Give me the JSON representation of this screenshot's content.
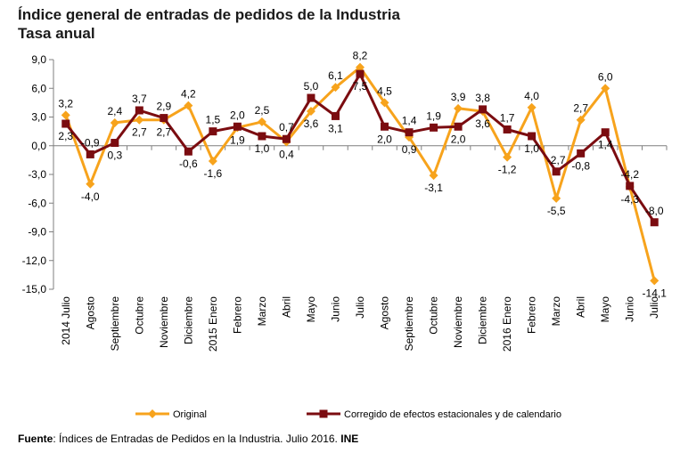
{
  "title_line1": "Índice general de entradas de pedidos de la Industria",
  "title_line2": "Tasa anual",
  "source_label": "Fuente",
  "source_text": ": Índices de Entradas de Pedidos en la Industria. Julio 2016.",
  "source_org": "INE",
  "chart_data": {
    "type": "line",
    "title": "Índice general de entradas de pedidos de la Industria",
    "subtitle": "Tasa anual",
    "xlabel": "",
    "ylabel": "",
    "ylim": [
      -15,
      9
    ],
    "yticks": [
      9,
      6,
      3,
      0,
      -3,
      -6,
      -9,
      -12,
      -15
    ],
    "ytick_labels": [
      "9,0",
      "6,0",
      "3,0",
      "0,0",
      "-3,0",
      "-6,0",
      "-9,0",
      "-12,0",
      "-15,0"
    ],
    "grid": false,
    "legend_position": "bottom",
    "categories": [
      "2014 Julio",
      "Agosto",
      "Septiembre",
      "Octubre",
      "Noviembre",
      "Diciembre",
      "2015 Enero",
      "Febrero",
      "Marzo",
      "Abril",
      "Mayo",
      "Junio",
      "Julio",
      "Agosto",
      "Septiembre",
      "Octubre",
      "Noviembre",
      "Diciembre",
      "2016 Enero",
      "Febrero",
      "Marzo",
      "Abril",
      "Mayo",
      "Junio",
      "Julio"
    ],
    "series": [
      {
        "name": "Original",
        "color": "#F7A31C",
        "values": [
          3.2,
          -4.0,
          2.4,
          2.7,
          2.7,
          4.2,
          -1.6,
          1.9,
          2.5,
          0.4,
          3.6,
          6.1,
          8.2,
          4.5,
          0.9,
          -3.1,
          3.9,
          3.6,
          -1.2,
          4.0,
          -5.5,
          2.7,
          6.0,
          -4.3,
          -14.1
        ],
        "labels": [
          "3,2",
          "-4,0",
          "2,4",
          "2,7",
          "2,7",
          "4,2",
          "-1,6",
          "1,9",
          "2,5",
          "0,4",
          "3,6",
          "6,1",
          "8,2",
          "4,5",
          "0,9",
          "-3,1",
          "3,9",
          "3,6",
          "-1,2",
          "4,0",
          "-5,5",
          "2,7",
          "6,0",
          "-4,3",
          "-14,1"
        ]
      },
      {
        "name": "Corregido de efectos estacionales y de calendario",
        "color": "#7B0C10",
        "values": [
          2.3,
          -0.9,
          0.3,
          3.7,
          2.9,
          -0.6,
          1.5,
          2.0,
          1.0,
          0.7,
          5.0,
          3.1,
          7.5,
          2.0,
          1.4,
          1.9,
          2.0,
          3.8,
          1.7,
          1.0,
          -2.7,
          -0.8,
          1.4,
          -4.2,
          -8.0
        ],
        "labels": [
          "2,3",
          "-0,9",
          "0,3",
          "3,7",
          "2,9",
          "-0,6",
          "1,5",
          "2,0",
          "1,0",
          "0,7",
          "5,0",
          "3,1",
          "7,5",
          "2,0",
          "1,4",
          "1,9",
          "2,0",
          "3,8",
          "1,7",
          "1,0",
          "-2,7",
          "-0,8",
          "1,4",
          "-4,2",
          "-8,0"
        ]
      }
    ]
  }
}
